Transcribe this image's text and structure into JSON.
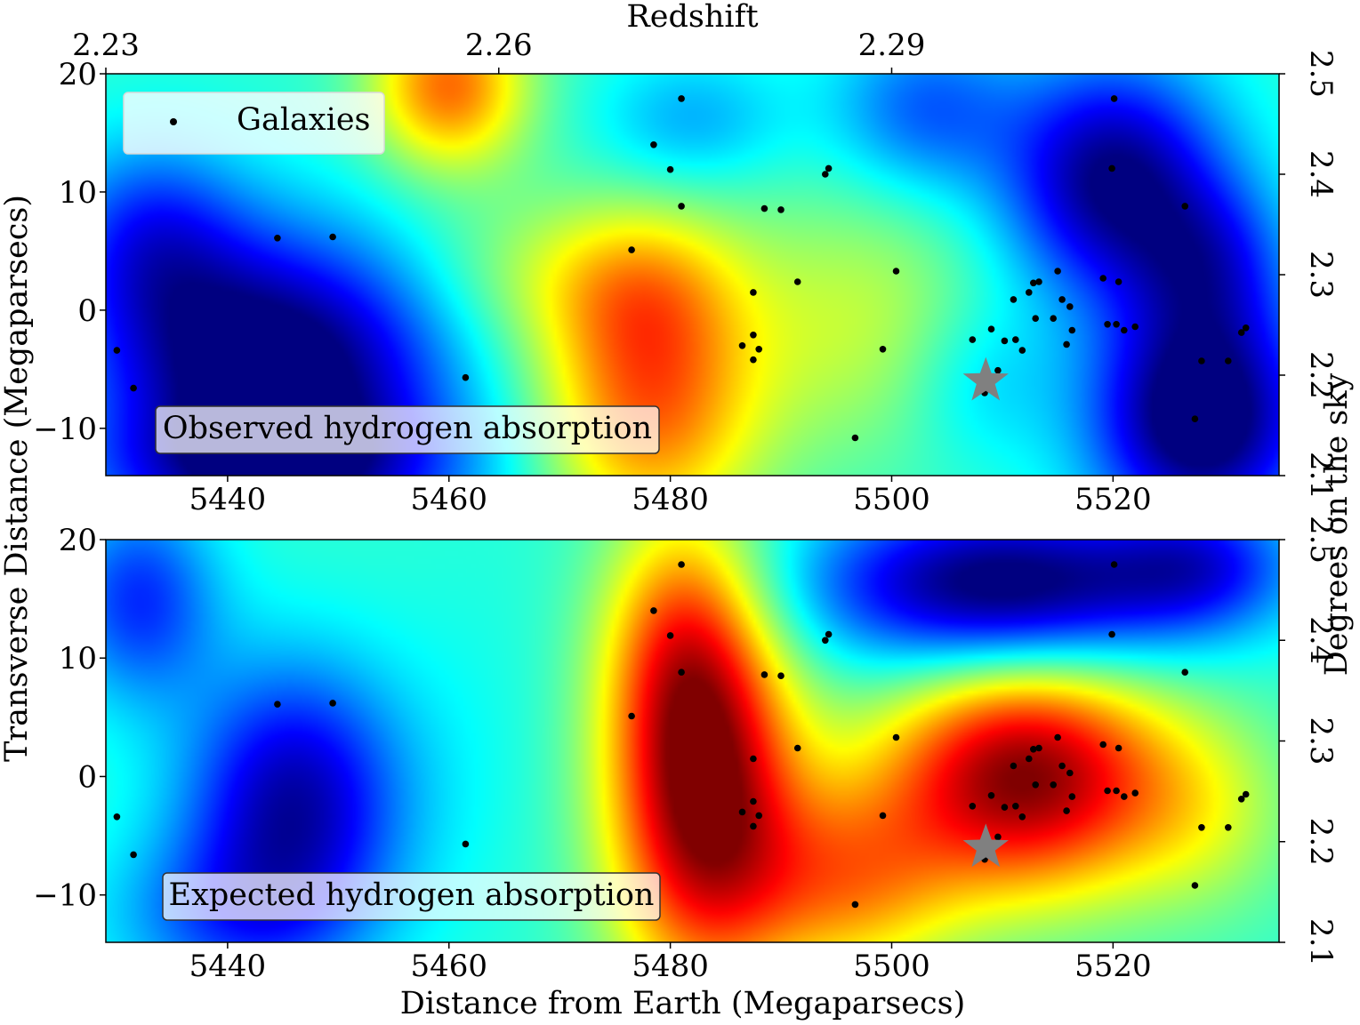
{
  "chart_data": [
    {
      "type": "heatmap",
      "panel_label": "Observed hydrogen absorption",
      "xlabel": "",
      "ylabel": "Transverse Distance (Megaparsecs)",
      "top_xlabel": "Redshift",
      "right_ylabel": "Degrees on the sky",
      "xlim": [
        5429,
        5535
      ],
      "ylim": [
        -14,
        20
      ],
      "x_ticks": [
        5440,
        5460,
        5480,
        5500,
        5520
      ],
      "y_ticks": [
        -10,
        0,
        10,
        20
      ],
      "y_tick_labels": [
        "−10",
        "0",
        "10",
        "20"
      ],
      "top_x_ticks": [
        "2.23",
        "2.26",
        "2.29"
      ],
      "top_x_tick_positions": [
        5429,
        5464.5,
        5500
      ],
      "right_y_ticks": [
        "2.1",
        "2.2",
        "2.3",
        "2.4",
        "2.5"
      ],
      "legend": {
        "entries": [
          "Galaxies"
        ],
        "placement": "top-left"
      },
      "colormap": "jet",
      "blobs": [
        {
          "x": 5444,
          "y": -5,
          "sx": 11,
          "sy": 8,
          "v": -1.0
        },
        {
          "x": 5433,
          "y": 6,
          "sx": 6,
          "sy": 6,
          "v": -0.45
        },
        {
          "x": 5445,
          "y": -14,
          "sx": 12,
          "sy": 4,
          "v": -0.5
        },
        {
          "x": 5460,
          "y": 19,
          "sx": 5,
          "sy": 5,
          "v": 0.7
        },
        {
          "x": 5478,
          "y": -8,
          "sx": 7,
          "sy": 8,
          "v": 0.7
        },
        {
          "x": 5478,
          "y": 2,
          "sx": 6,
          "sy": 5,
          "v": 0.3
        },
        {
          "x": 5497,
          "y": -1,
          "sx": 9,
          "sy": 8,
          "v": 0.28
        },
        {
          "x": 5468,
          "y": 3,
          "sx": 8,
          "sy": 5,
          "v": 0.22
        },
        {
          "x": 5520,
          "y": 11,
          "sx": 7,
          "sy": 7,
          "v": -0.85
        },
        {
          "x": 5528,
          "y": -9,
          "sx": 7,
          "sy": 7,
          "v": -1.0
        },
        {
          "x": 5503,
          "y": 17,
          "sx": 6,
          "sy": 5,
          "v": -0.4
        },
        {
          "x": 5482,
          "y": 16,
          "sx": 6,
          "sy": 4,
          "v": -0.25
        },
        {
          "x": 5508,
          "y": -6,
          "sx": 5,
          "sy": 5,
          "v": -0.2
        },
        {
          "x": 5529,
          "y": 4,
          "sx": 5,
          "sy": 5,
          "v": -0.4
        }
      ],
      "galaxies": {
        "x": [
          5430,
          5431.5,
          5444.5,
          5449.5,
          5461.5,
          5476.5,
          5478.5,
          5480,
          5481,
          5481,
          5486.5,
          5487.5,
          5487.5,
          5487.5,
          5488,
          5488.5,
          5490,
          5491.5,
          5494,
          5494.3,
          5496.7,
          5499.2,
          5500.4,
          5507.3,
          5508.4,
          5509,
          5509.6,
          5510.2,
          5511,
          5511.2,
          5511.8,
          5512.4,
          5512.8,
          5513,
          5513.3,
          5514.6,
          5515,
          5515.4,
          5515.8,
          5516.1,
          5516.3,
          5519.1,
          5519.5,
          5519.9,
          5520.1,
          5520.3,
          5520.5,
          5521,
          5522,
          5526.5,
          5527.4,
          5528,
          5530.4,
          5531.6,
          5532
        ],
        "y": [
          -3.4,
          -6.6,
          6.1,
          6.2,
          -5.7,
          5.1,
          14.0,
          11.9,
          17.9,
          8.8,
          -3.0,
          -2.1,
          1.5,
          -4.2,
          -3.3,
          8.6,
          8.5,
          2.4,
          11.5,
          12.0,
          -10.8,
          -3.3,
          3.3,
          -2.5,
          -7.0,
          -1.6,
          -5.1,
          -2.6,
          0.9,
          -2.5,
          -3.4,
          1.5,
          2.3,
          -0.7,
          2.4,
          -0.7,
          3.3,
          0.9,
          -2.9,
          0.3,
          -1.7,
          2.7,
          -1.2,
          12.0,
          17.9,
          -1.2,
          2.4,
          -1.7,
          -1.4,
          8.8,
          -9.2,
          -4.3,
          -4.3,
          -1.9,
          -1.5
        ],
        "star": {
          "x": 5508.5,
          "y": -6
        }
      }
    },
    {
      "type": "heatmap",
      "panel_label": "Expected hydrogen absorption",
      "xlabel": "Distance from Earth (Megaparsecs)",
      "ylabel": "",
      "right_ylabel": "",
      "xlim": [
        5429,
        5535
      ],
      "ylim": [
        -14,
        20
      ],
      "x_ticks": [
        5440,
        5460,
        5480,
        5500,
        5520
      ],
      "y_ticks": [
        -10,
        0,
        10,
        20
      ],
      "y_tick_labels": [
        "−10",
        "0",
        "10",
        "20"
      ],
      "right_y_ticks": [
        "2.1",
        "2.2",
        "2.3",
        "2.4",
        "2.5"
      ],
      "colormap": "jet",
      "blobs": [
        {
          "x": 5483,
          "y": -2,
          "sx": 6,
          "sy": 11,
          "v": 1.15
        },
        {
          "x": 5481,
          "y": 12,
          "sx": 5,
          "sy": 8,
          "v": 0.5
        },
        {
          "x": 5512,
          "y": 0,
          "sx": 9,
          "sy": 7,
          "v": 1.15
        },
        {
          "x": 5496,
          "y": -9,
          "sx": 7,
          "sy": 6,
          "v": 0.55
        },
        {
          "x": 5528,
          "y": -3,
          "sx": 6,
          "sy": 6,
          "v": 0.25
        },
        {
          "x": 5446,
          "y": -2,
          "sx": 7,
          "sy": 8,
          "v": -0.75
        },
        {
          "x": 5440,
          "y": -12,
          "sx": 8,
          "sy": 5,
          "v": -0.35
        },
        {
          "x": 5432,
          "y": 15,
          "sx": 5,
          "sy": 6,
          "v": -0.5
        },
        {
          "x": 5510,
          "y": 16,
          "sx": 12,
          "sy": 5,
          "v": -0.95
        },
        {
          "x": 5528,
          "y": 18,
          "sx": 6,
          "sy": 4,
          "v": -0.45
        },
        {
          "x": 5462,
          "y": 3,
          "sx": 6,
          "sy": 12,
          "v": -0.05
        }
      ],
      "galaxies": {
        "x": [
          5430,
          5431.5,
          5444.5,
          5449.5,
          5461.5,
          5476.5,
          5478.5,
          5480,
          5481,
          5481,
          5486.5,
          5487.5,
          5487.5,
          5487.5,
          5488,
          5488.5,
          5490,
          5491.5,
          5494,
          5494.3,
          5496.7,
          5499.2,
          5500.4,
          5507.3,
          5508.4,
          5509,
          5509.6,
          5510.2,
          5511,
          5511.2,
          5511.8,
          5512.4,
          5512.8,
          5513,
          5513.3,
          5514.6,
          5515,
          5515.4,
          5515.8,
          5516.1,
          5516.3,
          5519.1,
          5519.5,
          5519.9,
          5520.1,
          5520.3,
          5520.5,
          5521,
          5522,
          5526.5,
          5527.4,
          5528,
          5530.4,
          5531.6,
          5532
        ],
        "y": [
          -3.4,
          -6.6,
          6.1,
          6.2,
          -5.7,
          5.1,
          14.0,
          11.9,
          17.9,
          8.8,
          -3.0,
          -2.1,
          1.5,
          -4.2,
          -3.3,
          8.6,
          8.5,
          2.4,
          11.5,
          12.0,
          -10.8,
          -3.3,
          3.3,
          -2.5,
          -7.0,
          -1.6,
          -5.1,
          -2.6,
          0.9,
          -2.5,
          -3.4,
          1.5,
          2.3,
          -0.7,
          2.4,
          -0.7,
          3.3,
          0.9,
          -2.9,
          0.3,
          -1.7,
          2.7,
          -1.2,
          12.0,
          17.9,
          -1.2,
          2.4,
          -1.7,
          -1.4,
          8.8,
          -9.2,
          -4.3,
          -4.3,
          -1.9,
          -1.5
        ],
        "star": {
          "x": 5508.5,
          "y": -6
        }
      }
    }
  ]
}
